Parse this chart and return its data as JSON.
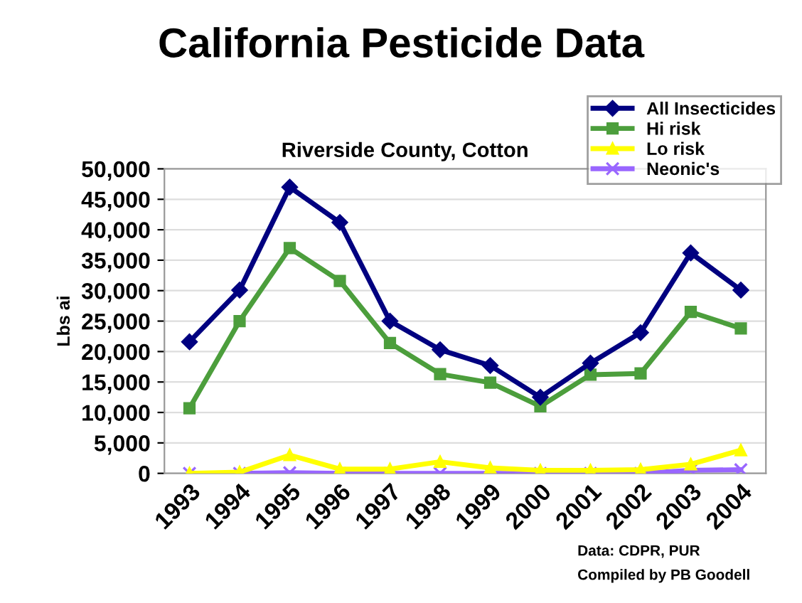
{
  "chart_data": {
    "type": "line",
    "title": "California Pesticide Data",
    "subtitle": "Riverside County, Cotton",
    "ylabel": "Lbs ai",
    "categories": [
      "1993",
      "1994",
      "1995",
      "1996",
      "1997",
      "1998",
      "1999",
      "2000",
      "2001",
      "2002",
      "2003",
      "2004"
    ],
    "series": [
      {
        "name": "All Insecticides",
        "color": "#000080",
        "marker": "diamond",
        "values": [
          21600,
          30100,
          47000,
          41200,
          25000,
          20300,
          17700,
          12500,
          18100,
          23100,
          36200,
          30100
        ]
      },
      {
        "name": "Hi risk",
        "color": "#4c9e3c",
        "marker": "square",
        "values": [
          10700,
          25000,
          37000,
          31600,
          21400,
          16300,
          14900,
          11000,
          16200,
          16400,
          26500,
          23800
        ]
      },
      {
        "name": "Lo risk",
        "color": "#ffff00",
        "marker": "triangle",
        "values": [
          0,
          200,
          3000,
          700,
          700,
          1900,
          900,
          500,
          500,
          600,
          1500,
          3800
        ]
      },
      {
        "name": "Neonic's",
        "color": "#9966ff",
        "marker": "cross",
        "values": [
          0,
          0,
          100,
          0,
          0,
          0,
          0,
          0,
          0,
          0,
          500,
          600
        ]
      }
    ],
    "ylim": [
      0,
      50000
    ],
    "yticks": [
      {
        "value": 0,
        "label": "0"
      },
      {
        "value": 5000,
        "label": "5,000"
      },
      {
        "value": 10000,
        "label": "10,000"
      },
      {
        "value": 15000,
        "label": "15,000"
      },
      {
        "value": 20000,
        "label": "20,000"
      },
      {
        "value": 25000,
        "label": "25,000"
      },
      {
        "value": 30000,
        "label": "30,000"
      },
      {
        "value": 35000,
        "label": "35,000"
      },
      {
        "value": 40000,
        "label": "40,000"
      },
      {
        "value": 45000,
        "label": "45,000"
      },
      {
        "value": 50000,
        "label": "50,000"
      }
    ],
    "grid": "y",
    "legend": "top right",
    "line_style": "solid",
    "annotations": [
      "Data: CDPR, PUR",
      "Compiled by PB Goodell"
    ]
  }
}
